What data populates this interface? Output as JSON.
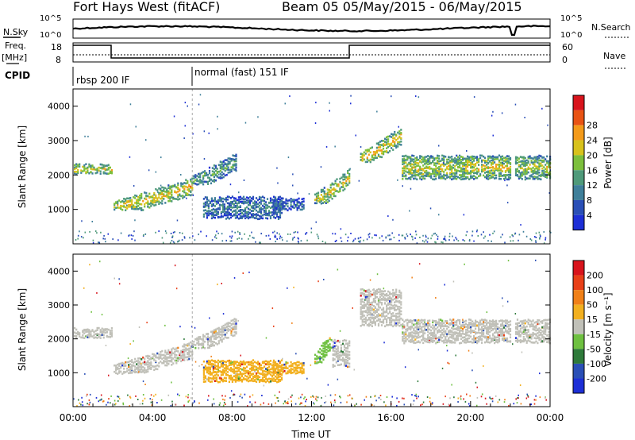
{
  "header": {
    "title": "Fort Hays West (fitACF)",
    "subtitle": "Beam 05 05/May/2015 - 06/May/2015"
  },
  "top_panels": {
    "nsky_label": "N.Sky",
    "nsearch_label": "N.Search",
    "nsky_ticks": [
      "10^5",
      "10^0"
    ],
    "nsearch_ticks": [
      "10^5",
      "10^0"
    ],
    "freq_label": "Freq.",
    "freq_unit": "[MHz]",
    "freq_ticks": [
      "18",
      "8"
    ],
    "nave_label": "Nave",
    "nave_ticks": [
      "60",
      "0"
    ],
    "cpid_label": "CPID",
    "modes": [
      {
        "label": "rbsp 200 IF",
        "start_h": 0
      },
      {
        "label": "normal (fast) 151 IF",
        "start_h": 6
      }
    ]
  },
  "chart_data": [
    {
      "type": "heatmap",
      "name": "power",
      "xlabel": "",
      "ylabel": "Slant Range [km]",
      "xlim": [
        0,
        24
      ],
      "ylim": [
        0,
        4500
      ],
      "yticks": [
        1000,
        2000,
        3000,
        4000
      ],
      "colorbar": {
        "label": "Power [dB]",
        "ticks": [
          "4",
          "8",
          "12",
          "16",
          "20",
          "24",
          "28"
        ],
        "colors": [
          "#1d2fd6",
          "#2a4fb6",
          "#3f7f9a",
          "#4f9a7a",
          "#7cbf3c",
          "#d8c21c",
          "#f39a1a",
          "#e85314",
          "#d8141c"
        ]
      },
      "bands": [
        {
          "t0": 0.0,
          "t1": 1.95,
          "r0": 2050,
          "r1": 2350,
          "level": 0.5
        },
        {
          "t0": 2.0,
          "t1": 6.0,
          "r0": 1000,
          "r1": 2000,
          "level": 0.55
        },
        {
          "t0": 6.0,
          "t1": 8.2,
          "r0": 1750,
          "r1": 2700,
          "level": 0.35
        },
        {
          "t0": 6.5,
          "t1": 10.5,
          "r0": 750,
          "r1": 1400,
          "level": 0.25
        },
        {
          "t0": 10.0,
          "t1": 11.6,
          "r0": 1000,
          "r1": 1350,
          "level": 0.2
        },
        {
          "t0": 12.1,
          "t1": 13.9,
          "r0": 1200,
          "r1": 2300,
          "level": 0.5
        },
        {
          "t0": 14.4,
          "t1": 16.5,
          "r0": 2400,
          "r1": 3500,
          "level": 0.55
        },
        {
          "t0": 16.5,
          "t1": 22.0,
          "r0": 1900,
          "r1": 2600,
          "level": 0.5
        },
        {
          "t0": 22.2,
          "t1": 24.0,
          "r0": 1900,
          "r1": 2600,
          "level": 0.45
        }
      ]
    },
    {
      "type": "heatmap",
      "name": "velocity",
      "xlabel": "Time UT",
      "ylabel": "Slant Range [km]",
      "xlim": [
        0,
        24
      ],
      "ylim": [
        0,
        4500
      ],
      "yticks": [
        1000,
        2000,
        3000,
        4000
      ],
      "xticks": [
        "00:00",
        "04:00",
        "08:00",
        "12:00",
        "16:00",
        "20:00",
        "00:00"
      ],
      "colorbar": {
        "label": "Velocity [m s⁻¹]",
        "ticks": [
          "200",
          "100",
          "50",
          "15",
          "-15",
          "-50",
          "-100",
          "-200"
        ],
        "colors": [
          "#1d2fd6",
          "#2a4fb6",
          "#2e7a3a",
          "#6ec040",
          "#c0c0b8",
          "#f2b020",
          "#f08018",
          "#e84018",
          "#d8141c"
        ]
      },
      "bands": [
        {
          "t0": 0.0,
          "t1": 1.95,
          "r0": 2050,
          "r1": 2350,
          "color": "#c0c0b8"
        },
        {
          "t0": 2.0,
          "t1": 6.0,
          "r0": 1000,
          "r1": 2000,
          "color": "#c0c0b8"
        },
        {
          "t0": 6.0,
          "t1": 8.2,
          "r0": 1750,
          "r1": 2700,
          "color": "#c0c0b8"
        },
        {
          "t0": 6.5,
          "t1": 10.5,
          "r0": 750,
          "r1": 1400,
          "color": "#f2b020"
        },
        {
          "t0": 10.0,
          "t1": 11.6,
          "r0": 1000,
          "r1": 1350,
          "color": "#f2b020"
        },
        {
          "t0": 12.1,
          "t1": 13.0,
          "r0": 1300,
          "r1": 2300,
          "color": "#6ec040"
        },
        {
          "t0": 13.0,
          "t1": 13.9,
          "r0": 1200,
          "r1": 2000,
          "color": "#c0c0b8"
        },
        {
          "t0": 14.4,
          "t1": 16.5,
          "r0": 2400,
          "r1": 3500,
          "color": "#c0c0b8"
        },
        {
          "t0": 16.5,
          "t1": 22.0,
          "r0": 1900,
          "r1": 2600,
          "color": "#c0c0b8"
        },
        {
          "t0": 22.2,
          "t1": 24.0,
          "r0": 1900,
          "r1": 2600,
          "color": "#c0c0b8"
        }
      ]
    }
  ]
}
